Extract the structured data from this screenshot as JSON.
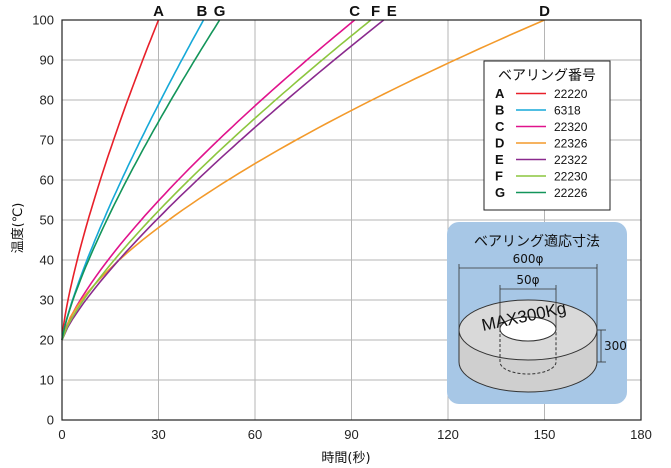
{
  "chart_data": {
    "type": "line",
    "xlabel": "時間(秒)",
    "ylabel": "温度(℃)",
    "xlim": [
      0,
      180
    ],
    "ylim": [
      0,
      100
    ],
    "x_ticks": [
      "0",
      "30",
      "60",
      "90",
      "120",
      "150",
      "180"
    ],
    "y_ticks": [
      "0",
      "10",
      "20",
      "30",
      "40",
      "50",
      "60",
      "70",
      "80",
      "90",
      "100"
    ],
    "grid": true,
    "series": [
      {
        "key": "A",
        "name": "22220",
        "color": "#e8202a",
        "end_x": 30,
        "exponent": 0.75
      },
      {
        "key": "B",
        "name": "6318",
        "color": "#16a9d8",
        "end_x": 44,
        "exponent": 0.8
      },
      {
        "key": "C",
        "name": "22320",
        "color": "#e0138c",
        "end_x": 91,
        "exponent": 0.75
      },
      {
        "key": "D",
        "name": "22326",
        "color": "#f39a2b",
        "end_x": 150,
        "exponent": 0.65
      },
      {
        "key": "E",
        "name": "22322",
        "color": "#8a2a8e",
        "end_x": 100,
        "exponent": 0.8
      },
      {
        "key": "F",
        "name": "22230",
        "color": "#8cc63e",
        "end_x": 96,
        "exponent": 0.78
      },
      {
        "key": "G",
        "name": "22226",
        "color": "#13955a",
        "end_x": 49,
        "exponent": 0.78
      }
    ],
    "start_value": 20,
    "end_value": 100,
    "curve_labels": [
      {
        "text": "A",
        "x": 30
      },
      {
        "text": "B",
        "x": 43.5
      },
      {
        "text": "G",
        "x": 49
      },
      {
        "text": "C",
        "x": 91
      },
      {
        "text": "F",
        "x": 97.5
      },
      {
        "text": "E",
        "x": 102.5
      },
      {
        "text": "D",
        "x": 150
      }
    ],
    "legend": {
      "title": "ベアリング番号",
      "placement": "top-right"
    },
    "inset": {
      "title": "ベアリング適応寸法",
      "outer_dim": "600φ",
      "inner_dim": "50φ",
      "height_dim": "300",
      "load_text": "MAX300Kg"
    }
  }
}
